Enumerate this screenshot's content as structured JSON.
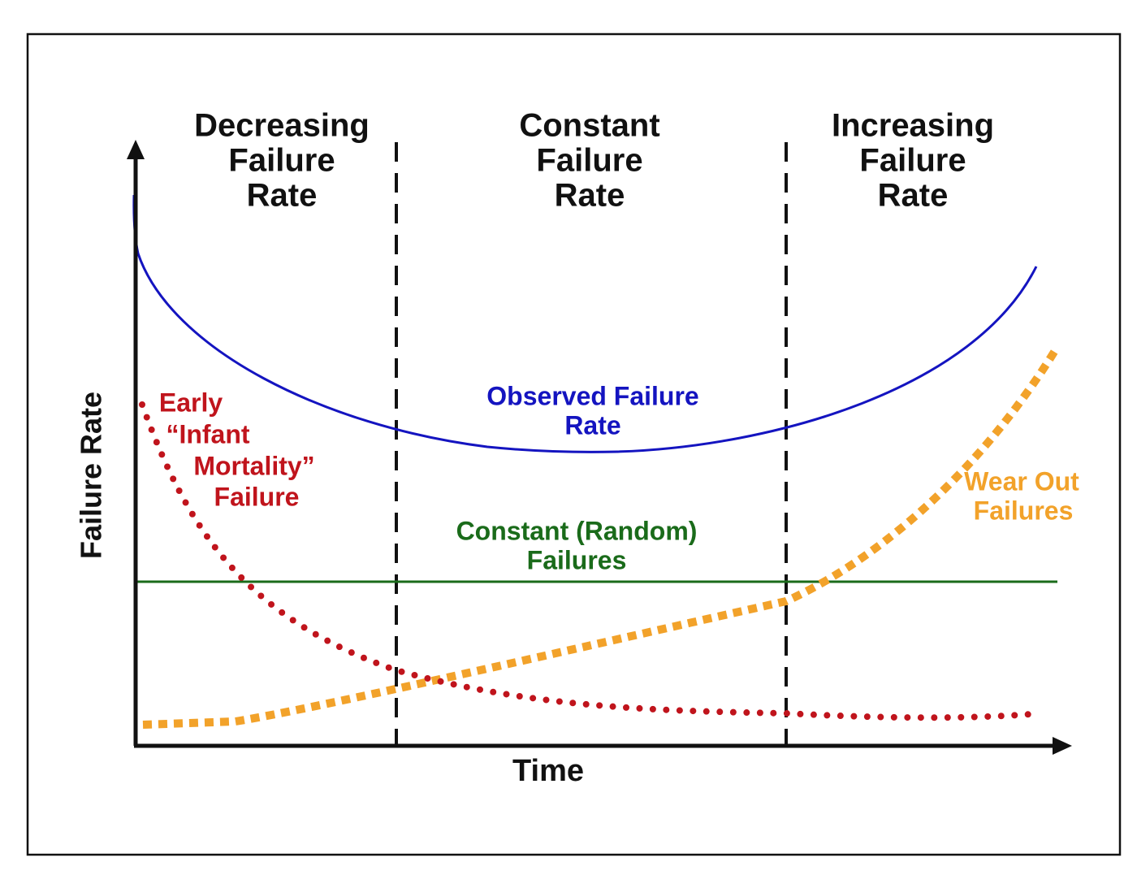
{
  "phases": [
    {
      "lines": [
        "Decreasing",
        "Failure",
        "Rate"
      ]
    },
    {
      "lines": [
        "Constant",
        "Failure",
        "Rate"
      ]
    },
    {
      "lines": [
        "Increasing",
        "Failure",
        "Rate"
      ]
    }
  ],
  "curves": {
    "observed": {
      "lines": [
        "Observed Failure",
        "Rate"
      ]
    },
    "infant": {
      "lines": [
        "Early",
        "“Infant",
        "Mortality”",
        "Failure"
      ]
    },
    "random": {
      "lines": [
        "Constant (Random)",
        "Failures"
      ]
    },
    "wear_out": {
      "lines": [
        "Wear Out",
        "Failures"
      ]
    }
  },
  "axes": {
    "y_label": "Failure Rate",
    "x_label": "Time"
  }
}
